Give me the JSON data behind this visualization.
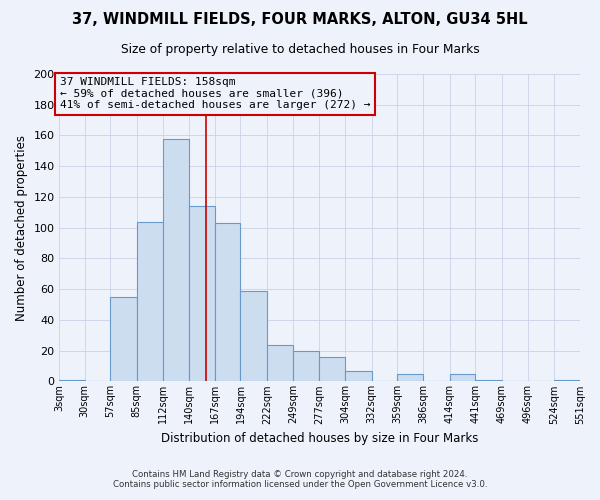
{
  "title": "37, WINDMILL FIELDS, FOUR MARKS, ALTON, GU34 5HL",
  "subtitle": "Size of property relative to detached houses in Four Marks",
  "xlabel": "Distribution of detached houses by size in Four Marks",
  "ylabel": "Number of detached properties",
  "bin_edges": [
    3,
    30,
    57,
    85,
    112,
    140,
    167,
    194,
    222,
    249,
    277,
    304,
    332,
    359,
    386,
    414,
    441,
    469,
    496,
    524,
    551
  ],
  "bin_labels": [
    "3sqm",
    "30sqm",
    "57sqm",
    "85sqm",
    "112sqm",
    "140sqm",
    "167sqm",
    "194sqm",
    "222sqm",
    "249sqm",
    "277sqm",
    "304sqm",
    "332sqm",
    "359sqm",
    "386sqm",
    "414sqm",
    "441sqm",
    "469sqm",
    "496sqm",
    "524sqm",
    "551sqm"
  ],
  "counts": [
    1,
    0,
    55,
    104,
    158,
    114,
    103,
    59,
    24,
    20,
    16,
    7,
    0,
    5,
    0,
    5,
    1,
    0,
    0,
    1
  ],
  "bar_facecolor": "#ccddf0",
  "bar_edgecolor": "#6699cc",
  "grid_color": "#c8d4e8",
  "property_line_x": 158,
  "property_line_color": "#cc0000",
  "annotation_title": "37 WINDMILL FIELDS: 158sqm",
  "annotation_line1": "← 59% of detached houses are smaller (396)",
  "annotation_line2": "41% of semi-detached houses are larger (272) →",
  "annotation_box_edgecolor": "#cc0000",
  "ylim": [
    0,
    200
  ],
  "yticks": [
    0,
    20,
    40,
    60,
    80,
    100,
    120,
    140,
    160,
    180,
    200
  ],
  "footer1": "Contains HM Land Registry data © Crown copyright and database right 2024.",
  "footer2": "Contains public sector information licensed under the Open Government Licence v3.0.",
  "bg_color": "#eef2fa",
  "plot_bg_color": "#eef2fa"
}
